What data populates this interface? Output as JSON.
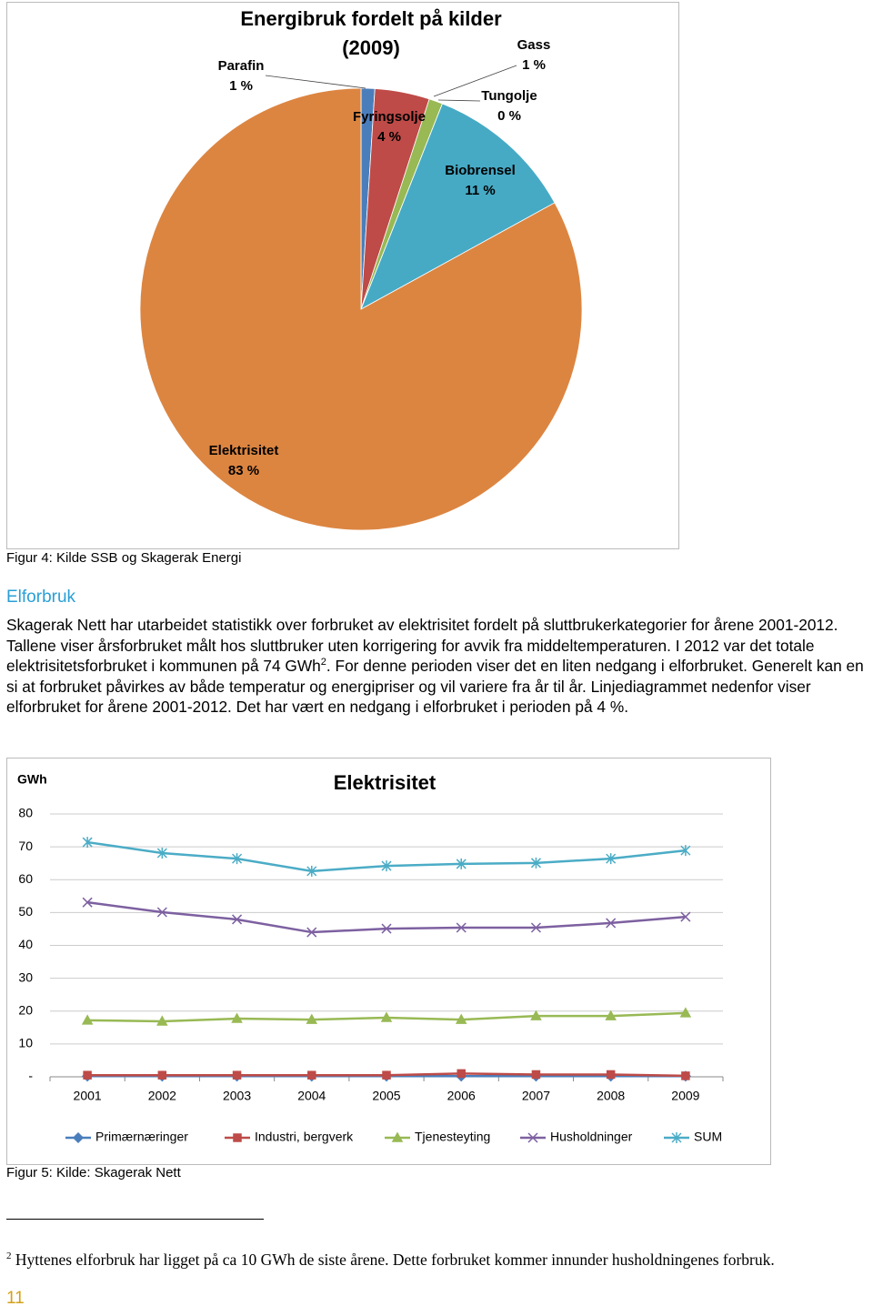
{
  "chart_data": [
    {
      "type": "pie",
      "title": "Energibruk fordelt på kilder",
      "subtitle": "(2009)",
      "categories": [
        "Parafin",
        "Fyringsolje",
        "Gass",
        "Tungolje",
        "Biobrensel",
        "Elektrisitet"
      ],
      "values": [
        1,
        4,
        1,
        0,
        11,
        83
      ],
      "value_labels": [
        "1 %",
        "4 %",
        "1 %",
        "0 %",
        "11 %",
        "83 %"
      ],
      "colors": [
        "#4a7ebb",
        "#be4b48",
        "#98b954",
        "#7d60a0",
        "#46aac5",
        "#dc8541"
      ]
    },
    {
      "type": "line",
      "title": "Elektrisitet",
      "y_label": "GWh",
      "categories": [
        "2001",
        "2002",
        "2003",
        "2004",
        "2005",
        "2006",
        "2007",
        "2008",
        "2009"
      ],
      "ylim": [
        0,
        80
      ],
      "yticks": [
        {
          "value": 0,
          "label": "-"
        },
        10,
        20,
        30,
        40,
        50,
        60,
        70,
        80
      ],
      "grid": true,
      "legend": "bottom",
      "series": [
        {
          "name": "Primærnæringer",
          "color": "#4a7ebb",
          "values": [
            0.2,
            0.2,
            0.2,
            0.2,
            0.2,
            0.2,
            0.2,
            0.2,
            0.2
          ]
        },
        {
          "name": "Industri, bergverk",
          "color": "#be4b48",
          "values": [
            0.5,
            0.5,
            0.5,
            0.5,
            0.5,
            1.0,
            0.7,
            0.7,
            0.3
          ]
        },
        {
          "name": "Tjenesteyting",
          "color": "#98b954",
          "values": [
            17.2,
            16.9,
            17.7,
            17.4,
            18.0,
            17.4,
            18.5,
            18.5,
            19.4
          ]
        },
        {
          "name": "Husholdninger",
          "color": "#7d60a0",
          "values": [
            53.1,
            50.1,
            47.9,
            44.0,
            45.1,
            45.4,
            45.4,
            46.8,
            48.7
          ]
        },
        {
          "name": "SUM",
          "color": "#4bacc6",
          "values": [
            71.4,
            68.1,
            66.4,
            62.6,
            64.2,
            64.8,
            65.1,
            66.4,
            68.9
          ]
        }
      ]
    }
  ],
  "document": {
    "figure_4_caption": "Figur 4: Kilde SSB og Skagerak Energi",
    "heading": "Elforbruk",
    "paragraph": [
      "Skagerak Nett har utarbeidet statistikk over forbruket av elektrisitet fordelt på sluttbrukerkategorier for årene 2001-2012. Tallene viser årsforbruket målt hos sluttbruker uten korrigering for avvik fra middeltemperaturen. I 2012 var det totale elektrisitetsforbruket i kommunen på 74 GWh",
      "2",
      ". For denne perioden viser det en liten nedgang i elforbruket. Generelt kan en si at forbruket påvirkes av både temperatur og energipriser og vil variere fra år til år. Linjediagrammet nedenfor viser elforbruket for årene 2001-2012. Det har vært en nedgang i elforbruket i perioden på 4 %."
    ],
    "figure_5_caption": "Figur 5: Kilde: Skagerak Nett",
    "footnote": {
      "marker": "2",
      "text": "Hyttenes elforbruk har ligget på ca 10 GWh de siste årene. Dette forbruket kommer innunder husholdningenes forbruk."
    },
    "page_number": "11"
  }
}
